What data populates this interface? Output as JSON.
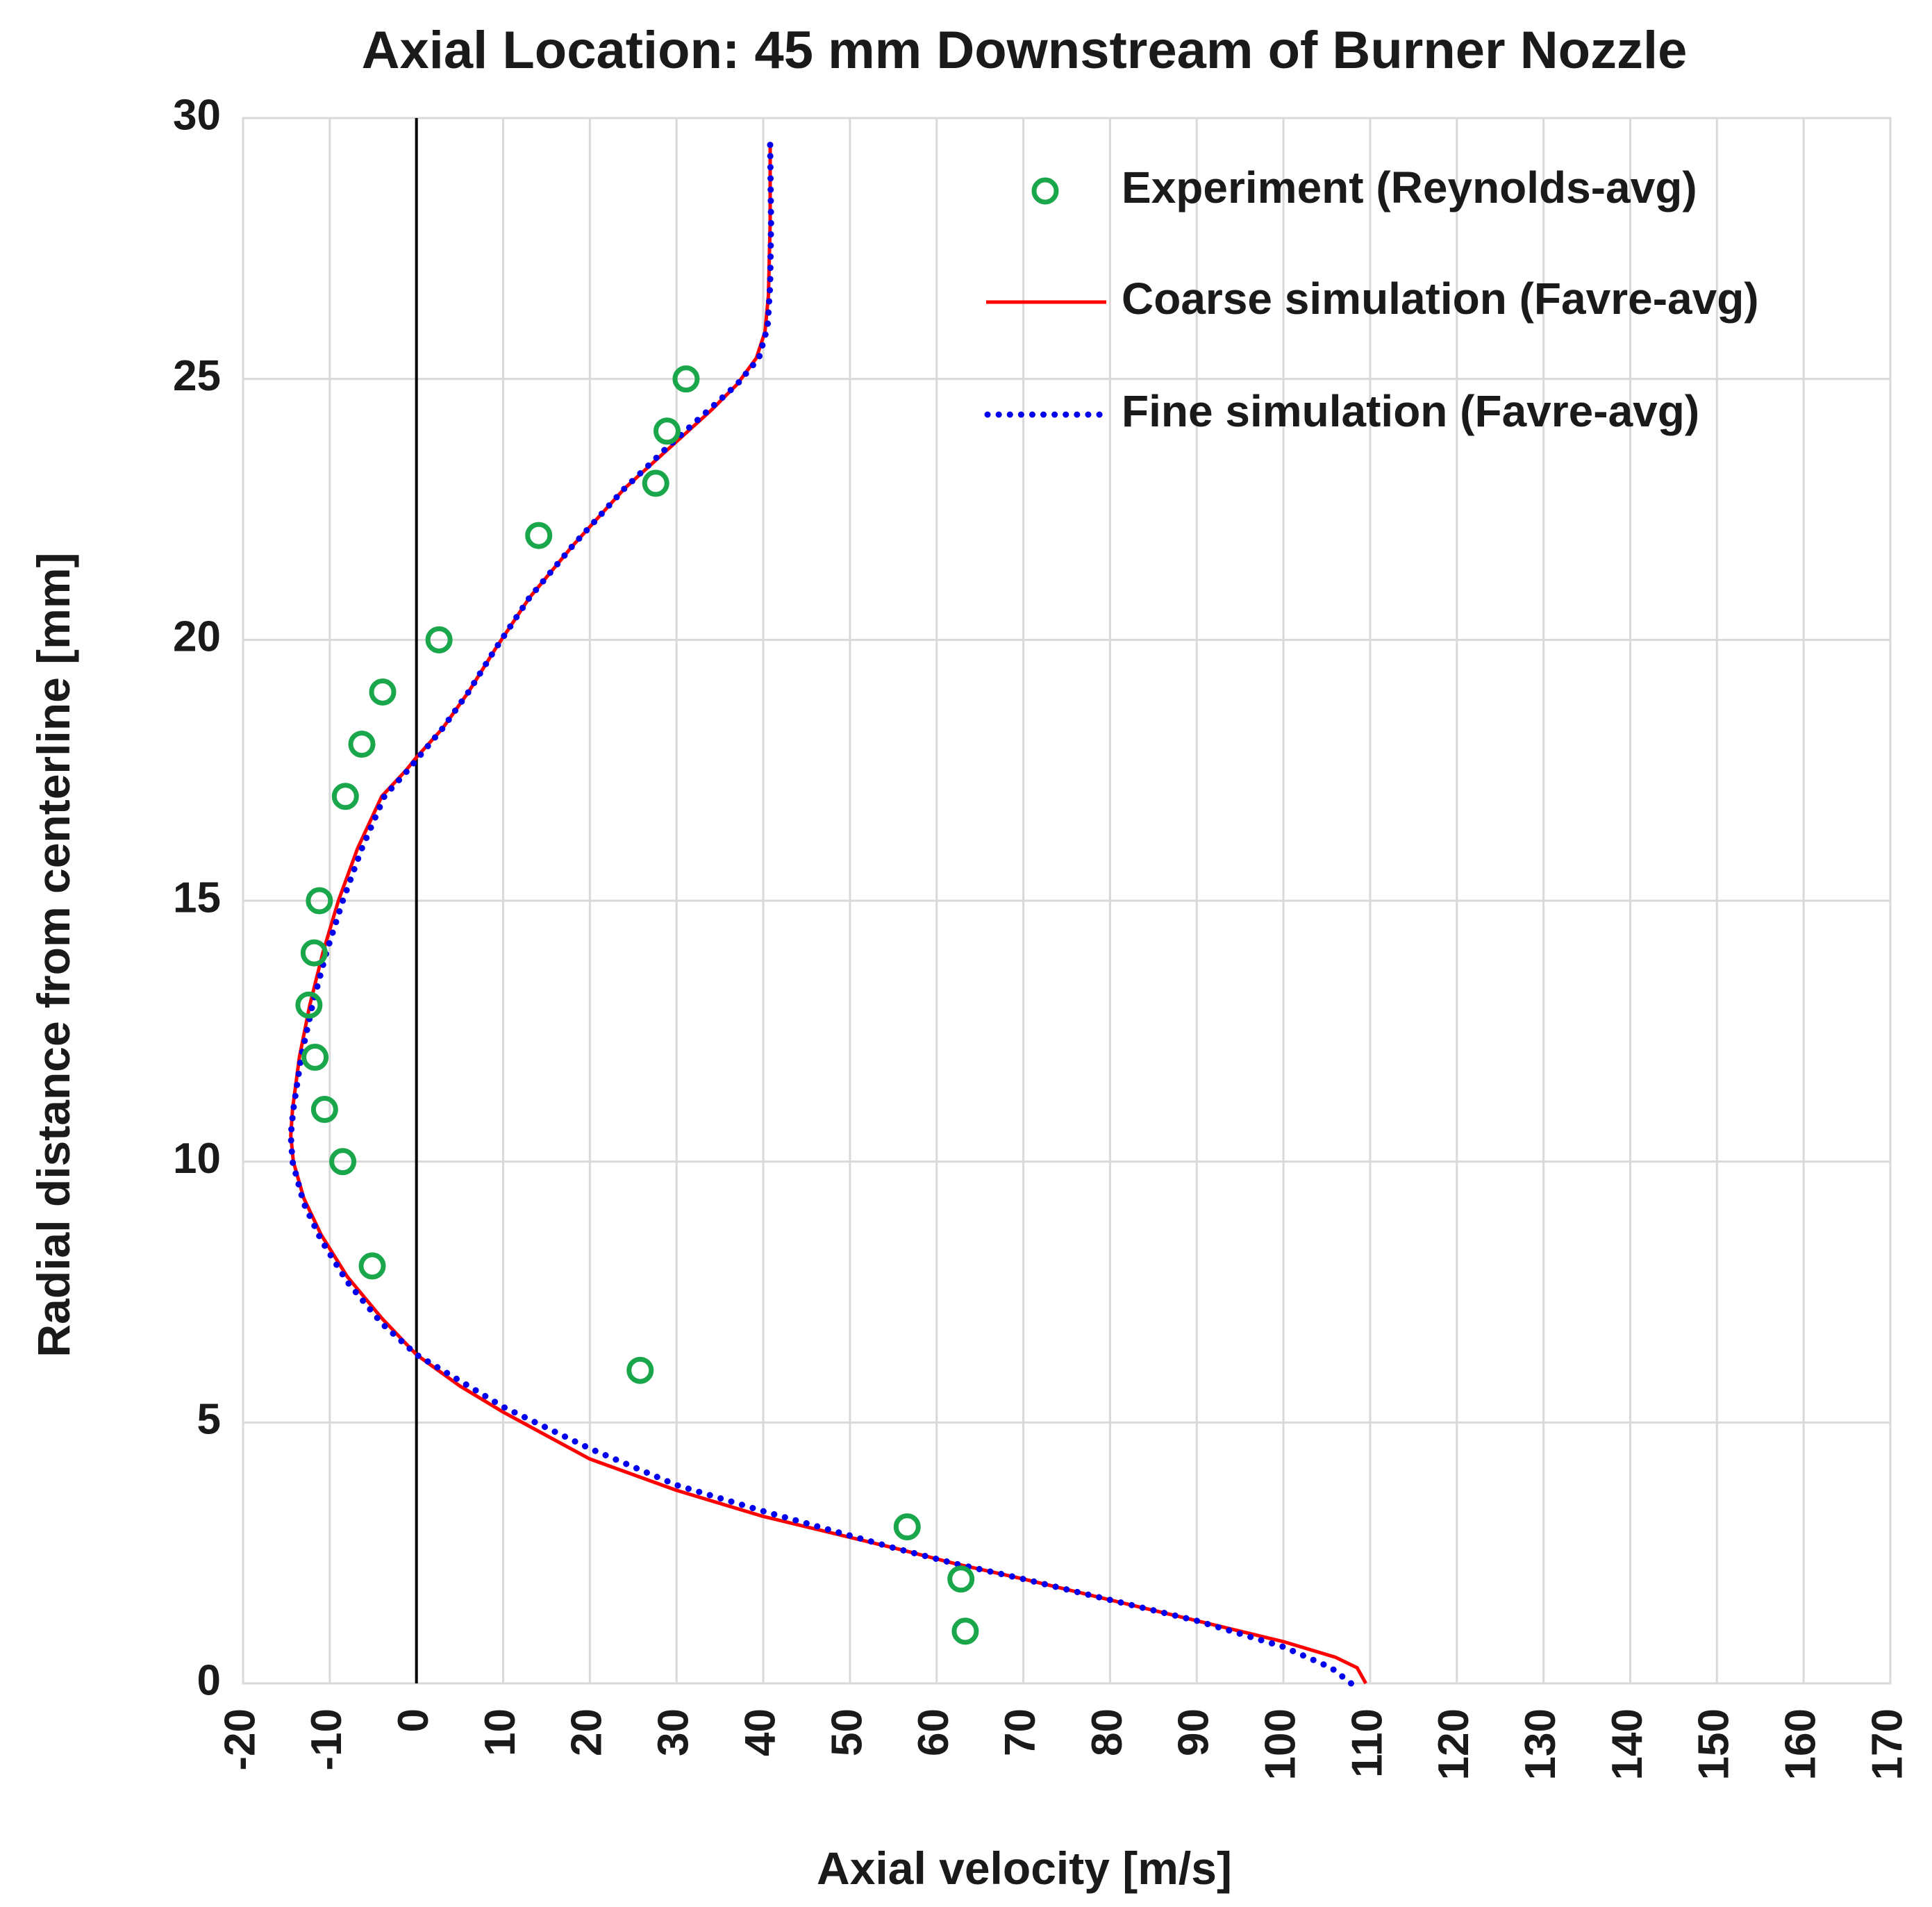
{
  "chart_data": {
    "type": "scatter",
    "title": "Axial Location: 45 mm Downstream of Burner Nozzle",
    "xlabel": "Axial velocity [m/s]",
    "ylabel": "Radial distance from centerline [mm]",
    "xlim": [
      -20,
      170
    ],
    "ylim": [
      0,
      30
    ],
    "x_ticks": [
      -20,
      -10,
      0,
      10,
      20,
      30,
      40,
      50,
      60,
      70,
      80,
      90,
      100,
      110,
      120,
      130,
      140,
      150,
      160,
      170
    ],
    "y_ticks": [
      0,
      5,
      10,
      15,
      20,
      25,
      30
    ],
    "x_tick_labels": [
      "-20",
      "-10",
      "0",
      "10",
      "20",
      "30",
      "40",
      "50",
      "60",
      "70",
      "80",
      "90",
      "100",
      "110",
      "120",
      "130",
      "140",
      "150",
      "160",
      "170"
    ],
    "y_tick_labels": [
      "0",
      "5",
      "10",
      "15",
      "20",
      "25",
      "30"
    ],
    "grid": true,
    "reference_line": {
      "x": 0,
      "color": "#000000"
    },
    "legend_position": "top-right",
    "series": [
      {
        "name": "Experiment (Reynolds-avg)",
        "style": "marker-circle-open",
        "color": "#1aa64a",
        "points": [
          [
            63.3,
            1
          ],
          [
            62.8,
            2
          ],
          [
            56.6,
            3
          ],
          [
            25.8,
            6
          ],
          [
            -5.1,
            8
          ],
          [
            -8.5,
            10
          ],
          [
            -10.6,
            11
          ],
          [
            -11.7,
            12
          ],
          [
            -12.4,
            13
          ],
          [
            -11.8,
            14
          ],
          [
            -11.2,
            15
          ],
          [
            -8.2,
            17
          ],
          [
            -6.3,
            18
          ],
          [
            -3.9,
            19
          ],
          [
            2.6,
            20
          ],
          [
            14.1,
            22
          ],
          [
            27.6,
            23
          ],
          [
            28.9,
            24
          ],
          [
            31.1,
            25
          ]
        ]
      },
      {
        "name": "Coarse simulation (Favre-avg)",
        "style": "solid-line",
        "color": "#ff0000",
        "points": [
          [
            109.5,
            0
          ],
          [
            108.5,
            0.3
          ],
          [
            106,
            0.5
          ],
          [
            100,
            0.8
          ],
          [
            90,
            1.2
          ],
          [
            80,
            1.6
          ],
          [
            70,
            2.0
          ],
          [
            62,
            2.3
          ],
          [
            55,
            2.6
          ],
          [
            40,
            3.2
          ],
          [
            30,
            3.7
          ],
          [
            20,
            4.3
          ],
          [
            10,
            5.2
          ],
          [
            5,
            5.7
          ],
          [
            0,
            6.3
          ],
          [
            -4,
            7.0
          ],
          [
            -8,
            7.8
          ],
          [
            -11,
            8.6
          ],
          [
            -13,
            9.3
          ],
          [
            -14.2,
            10.0
          ],
          [
            -14.5,
            10.5
          ],
          [
            -14.3,
            11.0
          ],
          [
            -13.5,
            12.0
          ],
          [
            -12.3,
            13.0
          ],
          [
            -10.8,
            14.0
          ],
          [
            -9.0,
            15.0
          ],
          [
            -6.8,
            16.0
          ],
          [
            -4.0,
            17.0
          ],
          [
            -1.2,
            17.5
          ],
          [
            0,
            17.75
          ],
          [
            3,
            18.3
          ],
          [
            6,
            19.0
          ],
          [
            9,
            19.8
          ],
          [
            13,
            20.8
          ],
          [
            18,
            21.8
          ],
          [
            24,
            22.9
          ],
          [
            30,
            23.8
          ],
          [
            34,
            24.4
          ],
          [
            37,
            24.9
          ],
          [
            39.2,
            25.4
          ],
          [
            40.2,
            25.9
          ],
          [
            40.6,
            26.6
          ],
          [
            40.8,
            28.0
          ],
          [
            40.8,
            29.5
          ]
        ]
      },
      {
        "name": "Fine simulation (Favre-avg)",
        "style": "dotted-line",
        "color": "#0000ee",
        "points": [
          [
            107.8,
            0
          ],
          [
            105.5,
            0.3
          ],
          [
            100,
            0.7
          ],
          [
            90,
            1.2
          ],
          [
            80,
            1.6
          ],
          [
            70,
            2.0
          ],
          [
            62,
            2.3
          ],
          [
            55,
            2.6
          ],
          [
            40,
            3.3
          ],
          [
            30,
            3.8
          ],
          [
            20,
            4.5
          ],
          [
            10,
            5.3
          ],
          [
            5,
            5.8
          ],
          [
            0,
            6.3
          ],
          [
            -4,
            6.9
          ],
          [
            -8,
            7.7
          ],
          [
            -11,
            8.5
          ],
          [
            -13,
            9.2
          ],
          [
            -14.3,
            10.0
          ],
          [
            -14.5,
            10.5
          ],
          [
            -14.2,
            11.0
          ],
          [
            -13.3,
            12.0
          ],
          [
            -12.0,
            13.0
          ],
          [
            -10.4,
            14.0
          ],
          [
            -8.5,
            15.0
          ],
          [
            -6.3,
            16.0
          ],
          [
            -3.7,
            17.0
          ],
          [
            -1.0,
            17.5
          ],
          [
            0,
            17.7
          ],
          [
            3,
            18.3
          ],
          [
            6,
            19.0
          ],
          [
            9,
            19.8
          ],
          [
            13,
            20.8
          ],
          [
            18,
            21.8
          ],
          [
            24,
            22.9
          ],
          [
            29,
            23.7
          ],
          [
            33,
            24.3
          ],
          [
            37,
            24.9
          ],
          [
            39.5,
            25.4
          ],
          [
            40.5,
            26.0
          ],
          [
            40.8,
            26.8
          ],
          [
            40.9,
            28.0
          ],
          [
            40.8,
            29.5
          ]
        ]
      }
    ]
  }
}
